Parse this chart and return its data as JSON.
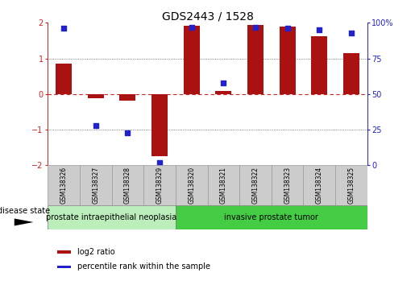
{
  "title": "GDS2443 / 1528",
  "samples": [
    "GSM138326",
    "GSM138327",
    "GSM138328",
    "GSM138329",
    "GSM138320",
    "GSM138321",
    "GSM138322",
    "GSM138323",
    "GSM138324",
    "GSM138325"
  ],
  "log2_ratio": [
    0.85,
    -0.12,
    -0.18,
    -1.75,
    1.92,
    0.08,
    1.93,
    1.9,
    1.62,
    1.15
  ],
  "percentile_rank": [
    96,
    28,
    23,
    2,
    97,
    58,
    97,
    96,
    95,
    93
  ],
  "bar_color": "#aa1111",
  "dot_color": "#2222cc",
  "group1_label": "prostate intraepithelial neoplasia",
  "group2_label": "invasive prostate tumor",
  "group1_count": 4,
  "group2_count": 6,
  "disease_state_label": "disease state",
  "legend1": "log2 ratio",
  "legend2": "percentile rank within the sample",
  "ylim": [
    -2,
    2
  ],
  "y_left_ticks": [
    -2,
    -1,
    0,
    1,
    2
  ],
  "y_right_ticks": [
    0,
    25,
    50,
    75,
    100
  ],
  "zero_line_color": "#cc2222",
  "dotted_line_color": "#555555",
  "group1_color": "#bbeebb",
  "group2_color": "#44cc44",
  "sample_box_color": "#cccccc",
  "bg_color": "#ffffff",
  "bar_width": 0.5,
  "title_fontsize": 10,
  "tick_fontsize": 7,
  "sample_fontsize": 5.5,
  "group_fontsize": 7,
  "legend_fontsize": 7,
  "disease_label_fontsize": 7
}
